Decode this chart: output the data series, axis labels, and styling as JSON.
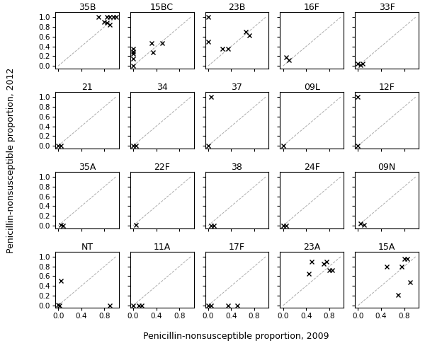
{
  "panel_order": [
    [
      "35B",
      "15BC",
      "23B",
      "16F",
      "33F"
    ],
    [
      "21",
      "34",
      "37",
      "09L",
      "12F"
    ],
    [
      "35A",
      "22F",
      "38",
      "24F",
      "09N"
    ],
    [
      "NT",
      "11A",
      "17F",
      "23A",
      "15A"
    ]
  ],
  "panels_data": {
    "35B": {
      "x": [
        0.7,
        0.85,
        0.9,
        0.95,
        1.0,
        0.8,
        0.85,
        0.9
      ],
      "y": [
        1.0,
        1.0,
        1.0,
        1.0,
        1.0,
        0.9,
        0.88,
        0.85
      ]
    },
    "15BC": {
      "x": [
        0.0,
        0.0,
        0.0,
        0.0,
        0.0,
        0.32,
        0.5,
        0.35
      ],
      "y": [
        0.35,
        0.3,
        0.25,
        0.15,
        0.0,
        0.46,
        0.46,
        0.28
      ]
    },
    "23B": {
      "x": [
        0.0,
        0.0,
        0.25,
        0.35,
        0.65,
        0.72
      ],
      "y": [
        1.0,
        0.5,
        0.35,
        0.35,
        0.7,
        0.62
      ]
    },
    "16F": {
      "x": [
        0.05,
        0.1
      ],
      "y": [
        0.18,
        0.12
      ]
    },
    "33F": {
      "x": [
        0.0,
        0.05,
        0.08
      ],
      "y": [
        0.05,
        0.02,
        0.05
      ]
    },
    "21": {
      "x": [
        0.0,
        0.05
      ],
      "y": [
        0.0,
        0.0
      ]
    },
    "34": {
      "x": [
        0.0,
        0.05
      ],
      "y": [
        0.0,
        0.0
      ]
    },
    "37": {
      "x": [
        0.0,
        0.05
      ],
      "y": [
        0.0,
        1.0
      ]
    },
    "09L": {
      "x": [
        0.0
      ],
      "y": [
        0.0
      ]
    },
    "12F": {
      "x": [
        0.0,
        0.0
      ],
      "y": [
        1.0,
        0.0
      ]
    },
    "35A": {
      "x": [
        0.05,
        0.08
      ],
      "y": [
        0.02,
        0.0
      ]
    },
    "22F": {
      "x": [
        0.05
      ],
      "y": [
        0.02
      ]
    },
    "38": {
      "x": [
        0.05,
        0.1
      ],
      "y": [
        0.0,
        0.0
      ]
    },
    "24F": {
      "x": [
        0.0,
        0.05
      ],
      "y": [
        0.0,
        0.0
      ]
    },
    "09N": {
      "x": [
        0.05,
        0.1
      ],
      "y": [
        0.05,
        0.02
      ]
    },
    "NT": {
      "x": [
        0.0,
        0.02,
        0.05,
        0.9
      ],
      "y": [
        0.02,
        0.0,
        0.5,
        0.0
      ]
    },
    "11A": {
      "x": [
        0.0,
        0.1,
        0.15
      ],
      "y": [
        0.0,
        0.0,
        0.0
      ]
    },
    "17F": {
      "x": [
        0.0,
        0.05,
        0.35,
        0.5
      ],
      "y": [
        0.0,
        0.0,
        0.0,
        0.0
      ]
    },
    "23A": {
      "x": [
        0.45,
        0.5,
        0.7,
        0.75,
        0.8,
        0.85
      ],
      "y": [
        0.65,
        0.9,
        0.85,
        0.9,
        0.72,
        0.72
      ]
    },
    "15A": {
      "x": [
        0.5,
        0.7,
        0.75,
        0.8,
        0.85,
        0.9
      ],
      "y": [
        0.8,
        0.22,
        0.8,
        0.95,
        0.95,
        0.48
      ]
    }
  },
  "nrows": 4,
  "ncols": 5,
  "xlabel": "Penicillin-nonsusceptible proportion, 2009",
  "ylabel": "Penicillin-nonsusceptible proportion, 2012",
  "xlim": [
    -0.05,
    1.05
  ],
  "ylim": [
    -0.05,
    1.1
  ],
  "xticks": [
    0.0,
    0.4,
    0.8
  ],
  "yticks": [
    0.0,
    0.2,
    0.4,
    0.6,
    0.8,
    1.0
  ],
  "marker": "x",
  "marker_size": 5,
  "marker_color": "black",
  "dashed_line_color": "#aaaaaa",
  "title_fontsize": 9,
  "label_fontsize": 9,
  "tick_fontsize": 7.5
}
